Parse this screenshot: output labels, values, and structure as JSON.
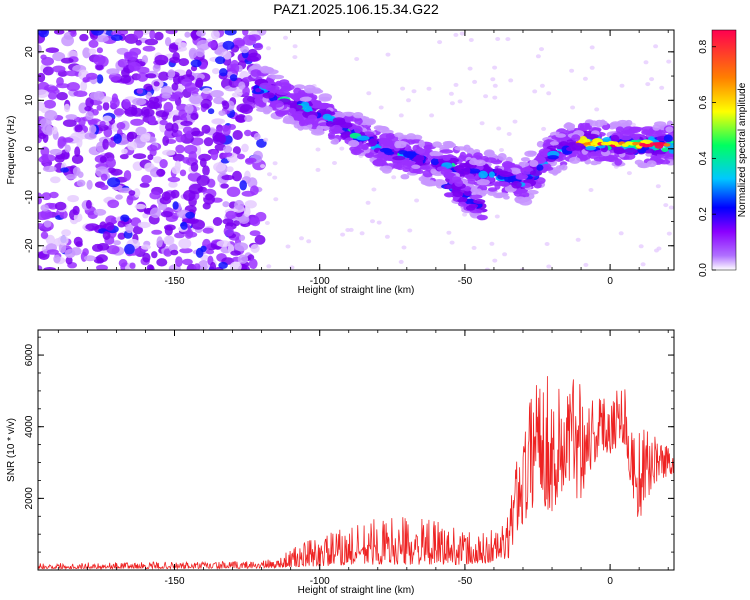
{
  "title": "PAZ1.2025.106.15.34.G22",
  "chart_data": [
    {
      "type": "heatmap",
      "xlabel": "Height of straight line (km)",
      "ylabel": "Frequency (Hz)",
      "xlim": [
        -197,
        22
      ],
      "ylim": [
        -25,
        24.5
      ],
      "x_ticks": [
        -150,
        -100,
        -50,
        0
      ],
      "y_ticks": [
        -20,
        -10,
        0,
        10,
        20
      ],
      "colorbar": {
        "label": "Normalized spectral amplitude",
        "range": [
          0.0,
          0.86
        ],
        "ticks": [
          0.0,
          0.2,
          0.4,
          0.6,
          0.8
        ],
        "colormap": [
          "#ffffff",
          "#8a00ff",
          "#0000ff",
          "#00c8ff",
          "#00ff60",
          "#ffff00",
          "#ff8000",
          "#ff0050"
        ]
      },
      "ridge_trace": [
        {
          "x": -120,
          "y": 12.5
        },
        {
          "x": -110,
          "y": 9.5
        },
        {
          "x": -100,
          "y": 7.5
        },
        {
          "x": -90,
          "y": 3.5
        },
        {
          "x": -80,
          "y": 0.5
        },
        {
          "x": -70,
          "y": -1.5
        },
        {
          "x": -60,
          "y": -3.0
        },
        {
          "x": -50,
          "y": -4.0
        },
        {
          "x": -40,
          "y": -5.5
        },
        {
          "x": -30,
          "y": -7.0
        },
        {
          "x": -20,
          "y": -1.0
        },
        {
          "x": -10,
          "y": 1.5
        },
        {
          "x": 0,
          "y": 1.0
        },
        {
          "x": 10,
          "y": 0.8
        },
        {
          "x": 20,
          "y": 0.8
        }
      ],
      "branch_trace": [
        {
          "x": -55,
          "y": -7.5
        },
        {
          "x": -45,
          "y": -12.0
        }
      ]
    },
    {
      "type": "line",
      "xlabel": "Height of straight line (km)",
      "ylabel": "SNR (10 * v/v)",
      "xlim": [
        -197,
        22
      ],
      "ylim": [
        0,
        6700
      ],
      "x_ticks": [
        -150,
        -100,
        -50,
        0
      ],
      "y_ticks": [
        2000,
        4000,
        6000
      ],
      "series": [
        {
          "color": "#ee2222",
          "envelope": [
            {
              "x": -197,
              "low": 40,
              "high": 200
            },
            {
              "x": -130,
              "low": 40,
              "high": 240
            },
            {
              "x": -115,
              "low": 60,
              "high": 300
            },
            {
              "x": -110,
              "low": 80,
              "high": 600
            },
            {
              "x": -100,
              "low": 100,
              "high": 1000
            },
            {
              "x": -90,
              "low": 150,
              "high": 1200
            },
            {
              "x": -80,
              "low": 150,
              "high": 1500
            },
            {
              "x": -70,
              "low": 150,
              "high": 1500
            },
            {
              "x": -55,
              "low": 150,
              "high": 1300
            },
            {
              "x": -45,
              "low": 150,
              "high": 1000
            },
            {
              "x": -35,
              "low": 300,
              "high": 1500
            },
            {
              "x": -32,
              "low": 1000,
              "high": 3500
            },
            {
              "x": -28,
              "low": 1500,
              "high": 4500
            },
            {
              "x": -25,
              "low": 2000,
              "high": 6600
            },
            {
              "x": -20,
              "low": 1500,
              "high": 5000
            },
            {
              "x": -15,
              "low": 2000,
              "high": 5500
            },
            {
              "x": -10,
              "low": 2000,
              "high": 5700
            },
            {
              "x": -5,
              "low": 3000,
              "high": 4800
            },
            {
              "x": 5,
              "low": 3500,
              "high": 5400
            },
            {
              "x": 7,
              "low": 2200,
              "high": 4000
            },
            {
              "x": 10,
              "low": 1300,
              "high": 4000
            },
            {
              "x": 15,
              "low": 2400,
              "high": 3800
            },
            {
              "x": 22,
              "low": 2700,
              "high": 3400
            }
          ]
        }
      ]
    }
  ]
}
